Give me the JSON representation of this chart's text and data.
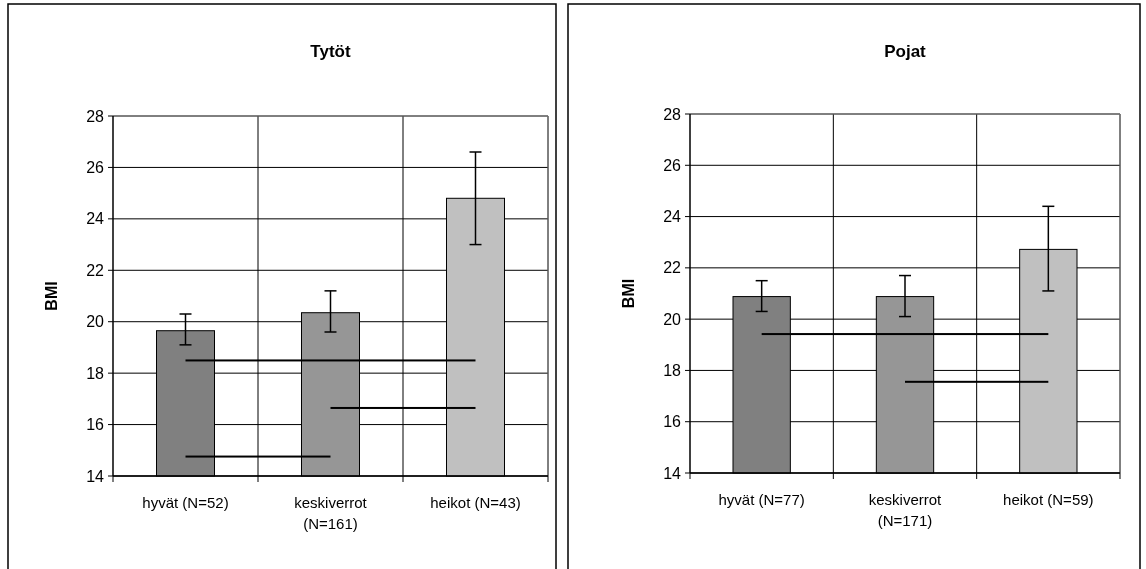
{
  "chart_data": [
    {
      "type": "bar",
      "title": "Tytöt",
      "ylabel": "BMI",
      "categories": [
        "hyvät (N=52)",
        "keskiverrot (N=161)",
        "heikot (N=43)"
      ],
      "values": [
        19.65,
        20.35,
        24.8
      ],
      "colors": [
        "#808080",
        "#969696",
        "#c0c0c0"
      ],
      "errors": [
        [
          19.1,
          20.3
        ],
        [
          19.6,
          21.2
        ],
        [
          23.0,
          26.6
        ]
      ],
      "ylim": [
        14,
        28
      ],
      "yticks": [
        14,
        16,
        18,
        20,
        22,
        24,
        26,
        28
      ],
      "grid": true
    },
    {
      "type": "bar",
      "title": "Pojat",
      "ylabel": "BMI",
      "categories": [
        "hyvät (N=77)",
        "keskiverrot (N=171)",
        "heikot (N=59)"
      ],
      "values": [
        20.88,
        20.88,
        22.72
      ],
      "colors": [
        "#808080",
        "#969696",
        "#c0c0c0"
      ],
      "errors": [
        [
          20.3,
          21.5
        ],
        [
          20.1,
          21.7
        ],
        [
          21.1,
          24.4
        ]
      ],
      "ylim": [
        14,
        28
      ],
      "yticks": [
        14,
        16,
        18,
        20,
        22,
        24,
        26,
        28
      ],
      "grid": true
    }
  ]
}
